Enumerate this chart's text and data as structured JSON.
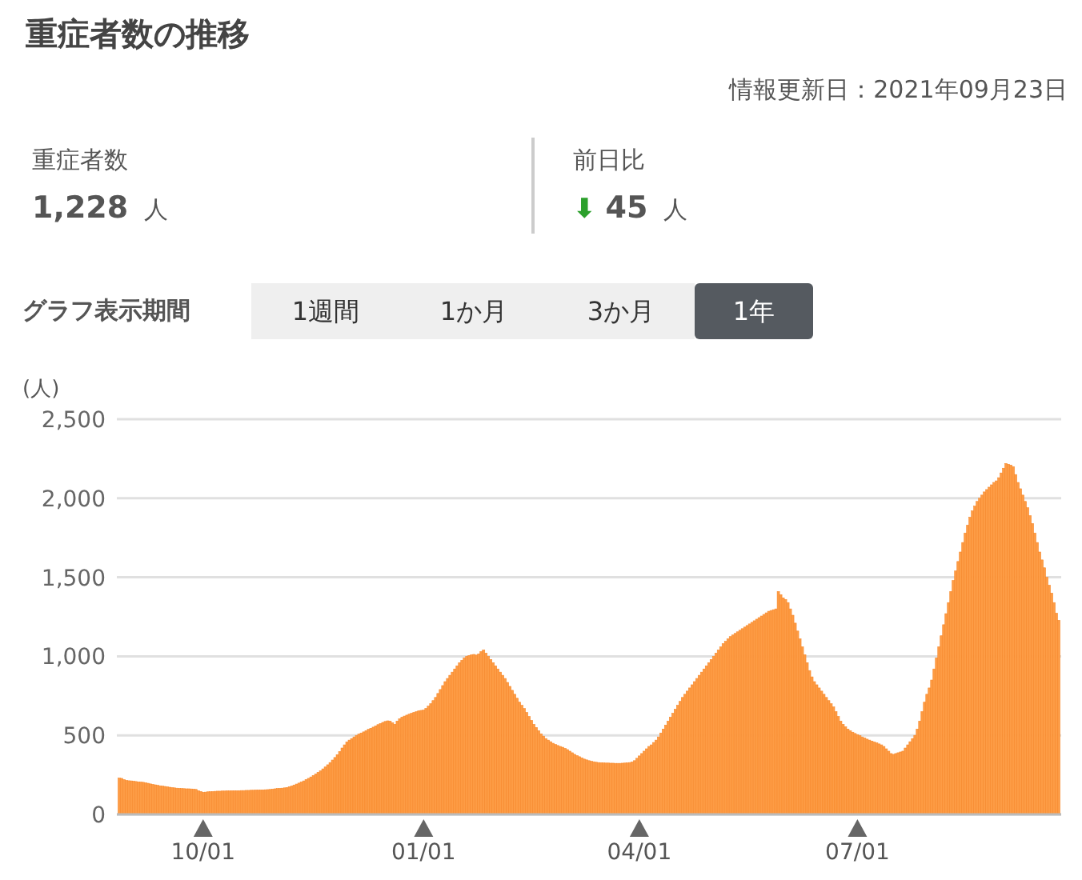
{
  "chart_data": {
    "type": "bar",
    "title": "重症者数の推移",
    "subtitle": "情報更新日：2021年09月23日",
    "ylabel": "(人)",
    "annotations": [
      "重症者数",
      "1,228",
      "人",
      "前日比",
      "⬇",
      "45",
      "人",
      "グラフ表示期間",
      "1週間",
      "1か月",
      "3か月",
      "1年"
    ],
    "color": "#fd9c45",
    "grid": "y",
    "ylim": [
      0,
      2500
    ],
    "yticks": [
      {
        "value": 0,
        "label": "0"
      },
      {
        "value": 500,
        "label": "500"
      },
      {
        "value": 1000,
        "label": "1,000"
      },
      {
        "value": 1500,
        "label": "1,500"
      },
      {
        "value": 2000,
        "label": "2,000"
      },
      {
        "value": 2500,
        "label": "2,500"
      }
    ],
    "xlim": [
      "2020-08-26",
      "2021-09-24"
    ],
    "xticks": [
      {
        "value": "2020-10-01",
        "label": "10/01"
      },
      {
        "value": "2021-01-01",
        "label": "01/01"
      },
      {
        "value": "2021-04-01",
        "label": "04/01"
      },
      {
        "value": "2021-07-01",
        "label": "07/01"
      }
    ],
    "x": [
      "2020-08-27",
      "2020-08-28",
      "2020-08-29",
      "2020-08-30",
      "2020-08-31",
      "2020-09-01",
      "2020-09-02",
      "2020-09-03",
      "2020-09-04",
      "2020-09-05",
      "2020-09-06",
      "2020-09-07",
      "2020-09-08",
      "2020-09-09",
      "2020-09-10",
      "2020-09-11",
      "2020-09-12",
      "2020-09-13",
      "2020-09-14",
      "2020-09-15",
      "2020-09-16",
      "2020-09-17",
      "2020-09-18",
      "2020-09-19",
      "2020-09-20",
      "2020-09-21",
      "2020-09-22",
      "2020-09-23",
      "2020-09-24",
      "2020-09-25",
      "2020-09-26",
      "2020-09-27",
      "2020-09-28",
      "2020-09-29",
      "2020-09-30",
      "2020-10-01",
      "2020-10-02",
      "2020-10-03",
      "2020-10-04",
      "2020-10-05",
      "2020-10-06",
      "2020-10-07",
      "2020-10-08",
      "2020-10-09",
      "2020-10-10",
      "2020-10-11",
      "2020-10-12",
      "2020-10-13",
      "2020-10-14",
      "2020-10-15",
      "2020-10-16",
      "2020-10-17",
      "2020-10-18",
      "2020-10-19",
      "2020-10-20",
      "2020-10-21",
      "2020-10-22",
      "2020-10-23",
      "2020-10-24",
      "2020-10-25",
      "2020-10-26",
      "2020-10-27",
      "2020-10-28",
      "2020-10-29",
      "2020-10-30",
      "2020-10-31",
      "2020-11-01",
      "2020-11-02",
      "2020-11-03",
      "2020-11-04",
      "2020-11-05",
      "2020-11-06",
      "2020-11-07",
      "2020-11-08",
      "2020-11-09",
      "2020-11-10",
      "2020-11-11",
      "2020-11-12",
      "2020-11-13",
      "2020-11-14",
      "2020-11-15",
      "2020-11-16",
      "2020-11-17",
      "2020-11-18",
      "2020-11-19",
      "2020-11-20",
      "2020-11-21",
      "2020-11-22",
      "2020-11-23",
      "2020-11-24",
      "2020-11-25",
      "2020-11-26",
      "2020-11-27",
      "2020-11-28",
      "2020-11-29",
      "2020-11-30",
      "2020-12-01",
      "2020-12-02",
      "2020-12-03",
      "2020-12-04",
      "2020-12-05",
      "2020-12-06",
      "2020-12-07",
      "2020-12-08",
      "2020-12-09",
      "2020-12-10",
      "2020-12-11",
      "2020-12-12",
      "2020-12-13",
      "2020-12-14",
      "2020-12-15",
      "2020-12-16",
      "2020-12-17",
      "2020-12-18",
      "2020-12-19",
      "2020-12-20",
      "2020-12-21",
      "2020-12-22",
      "2020-12-23",
      "2020-12-24",
      "2020-12-25",
      "2020-12-26",
      "2020-12-27",
      "2020-12-28",
      "2020-12-29",
      "2020-12-30",
      "2020-12-31",
      "2021-01-01",
      "2021-01-02",
      "2021-01-03",
      "2021-01-04",
      "2021-01-05",
      "2021-01-06",
      "2021-01-07",
      "2021-01-08",
      "2021-01-09",
      "2021-01-10",
      "2021-01-11",
      "2021-01-12",
      "2021-01-13",
      "2021-01-14",
      "2021-01-15",
      "2021-01-16",
      "2021-01-17",
      "2021-01-18",
      "2021-01-19",
      "2021-01-20",
      "2021-01-21",
      "2021-01-22",
      "2021-01-23",
      "2021-01-24",
      "2021-01-25",
      "2021-01-26",
      "2021-01-27",
      "2021-01-28",
      "2021-01-29",
      "2021-01-30",
      "2021-01-31",
      "2021-02-01",
      "2021-02-02",
      "2021-02-03",
      "2021-02-04",
      "2021-02-05",
      "2021-02-06",
      "2021-02-07",
      "2021-02-08",
      "2021-02-09",
      "2021-02-10",
      "2021-02-11",
      "2021-02-12",
      "2021-02-13",
      "2021-02-14",
      "2021-02-15",
      "2021-02-16",
      "2021-02-17",
      "2021-02-18",
      "2021-02-19",
      "2021-02-20",
      "2021-02-21",
      "2021-02-22",
      "2021-02-23",
      "2021-02-24",
      "2021-02-25",
      "2021-02-26",
      "2021-02-27",
      "2021-02-28",
      "2021-03-01",
      "2021-03-02",
      "2021-03-03",
      "2021-03-04",
      "2021-03-05",
      "2021-03-06",
      "2021-03-07",
      "2021-03-08",
      "2021-03-09",
      "2021-03-10",
      "2021-03-11",
      "2021-03-12",
      "2021-03-13",
      "2021-03-14",
      "2021-03-15",
      "2021-03-16",
      "2021-03-17",
      "2021-03-18",
      "2021-03-19",
      "2021-03-20",
      "2021-03-21",
      "2021-03-22",
      "2021-03-23",
      "2021-03-24",
      "2021-03-25",
      "2021-03-26",
      "2021-03-27",
      "2021-03-28",
      "2021-03-29",
      "2021-03-30",
      "2021-03-31",
      "2021-04-01",
      "2021-04-02",
      "2021-04-03",
      "2021-04-04",
      "2021-04-05",
      "2021-04-06",
      "2021-04-07",
      "2021-04-08",
      "2021-04-09",
      "2021-04-10",
      "2021-04-11",
      "2021-04-12",
      "2021-04-13",
      "2021-04-14",
      "2021-04-15",
      "2021-04-16",
      "2021-04-17",
      "2021-04-18",
      "2021-04-19",
      "2021-04-20",
      "2021-04-21",
      "2021-04-22",
      "2021-04-23",
      "2021-04-24",
      "2021-04-25",
      "2021-04-26",
      "2021-04-27",
      "2021-04-28",
      "2021-04-29",
      "2021-04-30",
      "2021-05-01",
      "2021-05-02",
      "2021-05-03",
      "2021-05-04",
      "2021-05-05",
      "2021-05-06",
      "2021-05-07",
      "2021-05-08",
      "2021-05-09",
      "2021-05-10",
      "2021-05-11",
      "2021-05-12",
      "2021-05-13",
      "2021-05-14",
      "2021-05-15",
      "2021-05-16",
      "2021-05-17",
      "2021-05-18",
      "2021-05-19",
      "2021-05-20",
      "2021-05-21",
      "2021-05-22",
      "2021-05-23",
      "2021-05-24",
      "2021-05-25",
      "2021-05-26",
      "2021-05-27",
      "2021-05-28",
      "2021-05-29",
      "2021-05-30",
      "2021-05-31",
      "2021-06-01",
      "2021-06-02",
      "2021-06-03",
      "2021-06-04",
      "2021-06-05",
      "2021-06-06",
      "2021-06-07",
      "2021-06-08",
      "2021-06-09",
      "2021-06-10",
      "2021-06-11",
      "2021-06-12",
      "2021-06-13",
      "2021-06-14",
      "2021-06-15",
      "2021-06-16",
      "2021-06-17",
      "2021-06-18",
      "2021-06-19",
      "2021-06-20",
      "2021-06-21",
      "2021-06-22",
      "2021-06-23",
      "2021-06-24",
      "2021-06-25",
      "2021-06-26",
      "2021-06-27",
      "2021-06-28",
      "2021-06-29",
      "2021-06-30",
      "2021-07-01",
      "2021-07-02",
      "2021-07-03",
      "2021-07-04",
      "2021-07-05",
      "2021-07-06",
      "2021-07-07",
      "2021-07-08",
      "2021-07-09",
      "2021-07-10",
      "2021-07-11",
      "2021-07-12",
      "2021-07-13",
      "2021-07-14",
      "2021-07-15",
      "2021-07-16",
      "2021-07-17",
      "2021-07-18",
      "2021-07-19",
      "2021-07-20",
      "2021-07-21",
      "2021-07-22",
      "2021-07-23",
      "2021-07-24",
      "2021-07-25",
      "2021-07-26",
      "2021-07-27",
      "2021-07-28",
      "2021-07-29",
      "2021-07-30",
      "2021-07-31",
      "2021-08-01",
      "2021-08-02",
      "2021-08-03",
      "2021-08-04",
      "2021-08-05",
      "2021-08-06",
      "2021-08-07",
      "2021-08-08",
      "2021-08-09",
      "2021-08-10",
      "2021-08-11",
      "2021-08-12",
      "2021-08-13",
      "2021-08-14",
      "2021-08-15",
      "2021-08-16",
      "2021-08-17",
      "2021-08-18",
      "2021-08-19",
      "2021-08-20",
      "2021-08-21",
      "2021-08-22",
      "2021-08-23",
      "2021-08-24",
      "2021-08-25",
      "2021-08-26",
      "2021-08-27",
      "2021-08-28",
      "2021-08-29",
      "2021-08-30",
      "2021-08-31",
      "2021-09-01",
      "2021-09-02",
      "2021-09-03",
      "2021-09-04",
      "2021-09-05",
      "2021-09-06",
      "2021-09-07",
      "2021-09-08",
      "2021-09-09",
      "2021-09-10",
      "2021-09-11",
      "2021-09-12",
      "2021-09-13",
      "2021-09-14",
      "2021-09-15",
      "2021-09-16",
      "2021-09-17",
      "2021-09-18",
      "2021-09-19",
      "2021-09-20",
      "2021-09-21",
      "2021-09-22",
      "2021-09-23"
    ],
    "values": [
      230,
      228,
      220,
      215,
      213,
      212,
      210,
      208,
      206,
      205,
      203,
      200,
      197,
      193,
      190,
      187,
      184,
      181,
      179,
      177,
      175,
      172,
      170,
      168,
      166,
      165,
      164,
      163,
      162,
      162,
      161,
      160,
      158,
      150,
      145,
      140,
      141,
      143,
      144,
      145,
      146,
      147,
      147,
      148,
      148,
      149,
      149,
      150,
      150,
      150,
      150,
      151,
      151,
      152,
      152,
      153,
      153,
      154,
      154,
      155,
      155,
      156,
      157,
      158,
      160,
      162,
      164,
      165,
      166,
      168,
      170,
      175,
      180,
      186,
      192,
      198,
      205,
      212,
      220,
      228,
      237,
      246,
      256,
      266,
      276,
      288,
      300,
      314,
      328,
      344,
      360,
      378,
      398,
      420,
      440,
      458,
      470,
      480,
      490,
      500,
      508,
      515,
      522,
      530,
      538,
      545,
      552,
      560,
      568,
      575,
      582,
      588,
      592,
      590,
      580,
      570,
      590,
      605,
      615,
      622,
      628,
      634,
      640,
      645,
      650,
      655,
      658,
      660,
      670,
      685,
      700,
      720,
      740,
      765,
      790,
      815,
      840,
      860,
      880,
      900,
      920,
      940,
      960,
      975,
      990,
      1000,
      1005,
      1010,
      1012,
      1008,
      1015,
      1030,
      1040,
      1020,
      1000,
      980,
      960,
      940,
      920,
      900,
      880,
      860,
      835,
      810,
      785,
      760,
      735,
      710,
      690,
      670,
      645,
      620,
      595,
      570,
      550,
      530,
      510,
      495,
      480,
      470,
      460,
      450,
      442,
      436,
      430,
      425,
      418,
      410,
      400,
      390,
      380,
      372,
      365,
      358,
      350,
      345,
      340,
      336,
      333,
      330,
      328,
      327,
      326,
      325,
      325,
      324,
      324,
      323,
      323,
      323,
      324,
      325,
      326,
      328,
      332,
      340,
      355,
      370,
      385,
      400,
      415,
      430,
      440,
      455,
      470,
      490,
      515,
      540,
      565,
      590,
      615,
      640,
      665,
      690,
      715,
      740,
      760,
      780,
      800,
      820,
      840,
      860,
      880,
      900,
      920,
      940,
      960,
      980,
      1000,
      1020,
      1040,
      1060,
      1080,
      1095,
      1110,
      1125,
      1135,
      1145,
      1155,
      1165,
      1175,
      1185,
      1195,
      1205,
      1215,
      1225,
      1235,
      1245,
      1255,
      1265,
      1275,
      1285,
      1290,
      1295,
      1300,
      1410,
      1390,
      1370,
      1360,
      1340,
      1300,
      1260,
      1210,
      1160,
      1110,
      1060,
      1010,
      960,
      910,
      870,
      840,
      820,
      800,
      780,
      760,
      740,
      720,
      700,
      680,
      650,
      620,
      590,
      570,
      555,
      540,
      530,
      520,
      512,
      505,
      498,
      490,
      483,
      476,
      470,
      464,
      458,
      452,
      446,
      440,
      430,
      415,
      400,
      385,
      380,
      385,
      390,
      395,
      400,
      420,
      440,
      460,
      480,
      500,
      540,
      590,
      650,
      710,
      760,
      800,
      850,
      920,
      990,
      1060,
      1130,
      1200,
      1270,
      1340,
      1410,
      1480,
      1540,
      1600,
      1660,
      1720,
      1780,
      1830,
      1880,
      1920,
      1950,
      1980,
      2000,
      2020,
      2040,
      2055,
      2070,
      2085,
      2100,
      2110,
      2130,
      2160,
      2190,
      2220,
      2215,
      2210,
      2200,
      2150,
      2100,
      2060,
      2020,
      1980,
      1940,
      1890,
      1840,
      1780,
      1720,
      1660,
      1610,
      1560,
      1500,
      1450,
      1400,
      1340,
      1273,
      1228
    ]
  }
}
